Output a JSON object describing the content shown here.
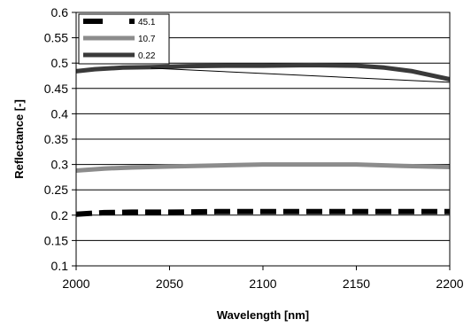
{
  "chart_data": {
    "type": "line",
    "title": "",
    "xlabel": "Wavelength [nm]",
    "ylabel": "Reflectance [-]",
    "xlim": [
      2000,
      2200
    ],
    "ylim": [
      0.1,
      0.6
    ],
    "x_ticks": [
      "2000",
      "2050",
      "2100",
      "2150",
      "2200"
    ],
    "y_ticks": [
      "0.1",
      "0.15",
      "0.2",
      "0.25",
      "0.3",
      "0.35",
      "0.4",
      "0.45",
      "0.5",
      "0.55",
      "0.6"
    ],
    "grid": "horizontal",
    "legend_position": "top-left",
    "series": [
      {
        "name": "45.1",
        "color": "#000000",
        "style": "dashed",
        "x": [
          2000,
          2015,
          2030,
          2050,
          2075,
          2100,
          2125,
          2150,
          2175,
          2200
        ],
        "y": [
          0.202,
          0.205,
          0.206,
          0.206,
          0.207,
          0.207,
          0.207,
          0.207,
          0.207,
          0.207
        ]
      },
      {
        "name": "10.7",
        "color": "#8c8c8c",
        "style": "solid",
        "x": [
          2000,
          2015,
          2030,
          2050,
          2075,
          2100,
          2125,
          2150,
          2175,
          2200
        ],
        "y": [
          0.288,
          0.292,
          0.294,
          0.296,
          0.298,
          0.3,
          0.3,
          0.3,
          0.297,
          0.295
        ]
      },
      {
        "name": "0.22",
        "color": "#3a3a3a",
        "style": "solid",
        "x": [
          2000,
          2010,
          2025,
          2040,
          2060,
          2080,
          2100,
          2125,
          2150,
          2165,
          2180,
          2190,
          2200
        ],
        "y": [
          0.484,
          0.488,
          0.491,
          0.492,
          0.494,
          0.495,
          0.495,
          0.496,
          0.495,
          0.491,
          0.484,
          0.476,
          0.468
        ]
      },
      {
        "name": "",
        "color": "#000000",
        "style": "thin",
        "x": [
          2040,
          2200
        ],
        "y": [
          0.49,
          0.462
        ]
      }
    ]
  }
}
